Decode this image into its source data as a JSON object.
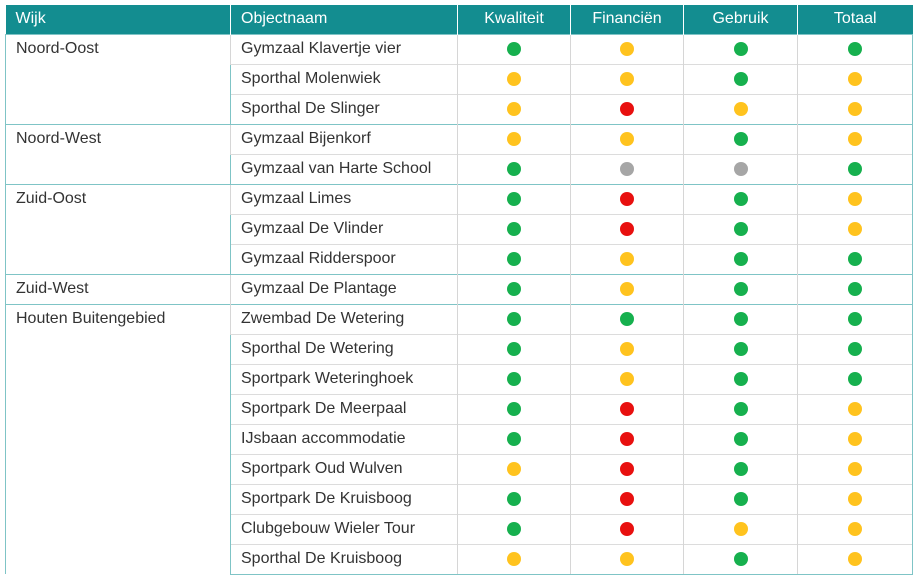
{
  "header": {
    "wijk": "Wijk",
    "objectnaam": "Objectnaam",
    "kwaliteit": "Kwaliteit",
    "financien": "Financiën",
    "gebruik": "Gebruik",
    "totaal": "Totaal"
  },
  "status_colors": {
    "green": "#16b04e",
    "yellow": "#ffc31e",
    "red": "#e8100f",
    "gray": "#a6a6a6"
  },
  "groups": [
    {
      "wijk": "Noord-Oost",
      "rows": [
        {
          "name": "Gymzaal Klavertje vier",
          "kwaliteit": "green",
          "financien": "yellow",
          "gebruik": "green",
          "totaal": "green"
        },
        {
          "name": "Sporthal Molenwiek",
          "kwaliteit": "yellow",
          "financien": "yellow",
          "gebruik": "green",
          "totaal": "yellow"
        },
        {
          "name": "Sporthal De Slinger",
          "kwaliteit": "yellow",
          "financien": "red",
          "gebruik": "yellow",
          "totaal": "yellow"
        }
      ]
    },
    {
      "wijk": "Noord-West",
      "rows": [
        {
          "name": "Gymzaal Bijenkorf",
          "kwaliteit": "yellow",
          "financien": "yellow",
          "gebruik": "green",
          "totaal": "yellow"
        },
        {
          "name": "Gymzaal van Harte School",
          "kwaliteit": "green",
          "financien": "gray",
          "gebruik": "gray",
          "totaal": "green"
        }
      ]
    },
    {
      "wijk": "Zuid-Oost",
      "rows": [
        {
          "name": "Gymzaal Limes",
          "kwaliteit": "green",
          "financien": "red",
          "gebruik": "green",
          "totaal": "yellow"
        },
        {
          "name": "Gymzaal De Vlinder",
          "kwaliteit": "green",
          "financien": "red",
          "gebruik": "green",
          "totaal": "yellow"
        },
        {
          "name": "Gymzaal Ridderspoor",
          "kwaliteit": "green",
          "financien": "yellow",
          "gebruik": "green",
          "totaal": "green"
        }
      ]
    },
    {
      "wijk": "Zuid-West",
      "rows": [
        {
          "name": "Gymzaal De Plantage",
          "kwaliteit": "green",
          "financien": "yellow",
          "gebruik": "green",
          "totaal": "green"
        }
      ]
    },
    {
      "wijk": "Houten Buitengebied",
      "rows": [
        {
          "name": "Zwembad De Wetering",
          "kwaliteit": "green",
          "financien": "green",
          "gebruik": "green",
          "totaal": "green"
        },
        {
          "name": "Sporthal De Wetering",
          "kwaliteit": "green",
          "financien": "yellow",
          "gebruik": "green",
          "totaal": "green"
        },
        {
          "name": "Sportpark Weteringhoek",
          "kwaliteit": "green",
          "financien": "yellow",
          "gebruik": "green",
          "totaal": "green"
        },
        {
          "name": "Sportpark De Meerpaal",
          "kwaliteit": "green",
          "financien": "red",
          "gebruik": "green",
          "totaal": "yellow"
        },
        {
          "name": "IJsbaan accommodatie",
          "kwaliteit": "green",
          "financien": "red",
          "gebruik": "green",
          "totaal": "yellow"
        },
        {
          "name": "Sportpark Oud Wulven",
          "kwaliteit": "yellow",
          "financien": "red",
          "gebruik": "green",
          "totaal": "yellow"
        },
        {
          "name": "Sportpark De Kruisboog",
          "kwaliteit": "green",
          "financien": "red",
          "gebruik": "green",
          "totaal": "yellow"
        },
        {
          "name": "Clubgebouw Wieler Tour",
          "kwaliteit": "green",
          "financien": "red",
          "gebruik": "yellow",
          "totaal": "yellow"
        },
        {
          "name": "Sporthal De Kruisboog",
          "kwaliteit": "yellow",
          "financien": "yellow",
          "gebruik": "green",
          "totaal": "yellow"
        }
      ]
    }
  ]
}
